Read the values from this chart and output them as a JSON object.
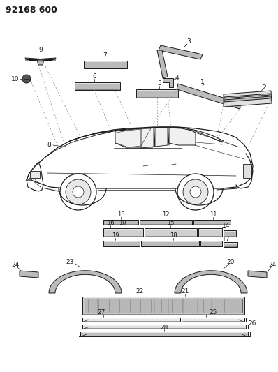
{
  "title": "92168 600",
  "bg_color": "#ffffff",
  "fig_width": 3.98,
  "fig_height": 5.33,
  "dpi": 100,
  "lw": 0.7
}
